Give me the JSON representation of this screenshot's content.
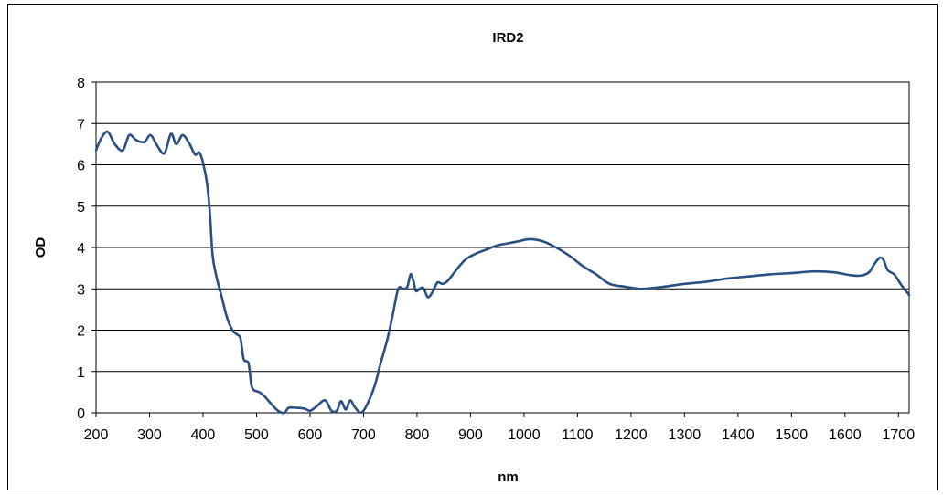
{
  "chart_data": {
    "type": "line",
    "title": "IRD2",
    "xlabel": "nm",
    "ylabel": "OD",
    "xlim": [
      200,
      1720
    ],
    "ylim": [
      0,
      8
    ],
    "xticks": [
      200,
      300,
      400,
      500,
      600,
      700,
      800,
      900,
      1000,
      1100,
      1200,
      1300,
      1400,
      1500,
      1600,
      1700
    ],
    "yticks": [
      0,
      1,
      2,
      3,
      4,
      5,
      6,
      7,
      8
    ],
    "grid": "horizontal",
    "legend": "none",
    "series": [
      {
        "color": "#2a4f82",
        "points": [
          [
            200,
            6.35
          ],
          [
            210,
            6.65
          ],
          [
            222,
            6.8
          ],
          [
            235,
            6.5
          ],
          [
            250,
            6.35
          ],
          [
            262,
            6.72
          ],
          [
            275,
            6.6
          ],
          [
            290,
            6.55
          ],
          [
            302,
            6.72
          ],
          [
            315,
            6.45
          ],
          [
            328,
            6.28
          ],
          [
            340,
            6.75
          ],
          [
            350,
            6.5
          ],
          [
            362,
            6.72
          ],
          [
            375,
            6.5
          ],
          [
            385,
            6.25
          ],
          [
            393,
            6.3
          ],
          [
            400,
            6.05
          ],
          [
            408,
            5.5
          ],
          [
            413,
            4.8
          ],
          [
            418,
            3.8
          ],
          [
            425,
            3.3
          ],
          [
            435,
            2.8
          ],
          [
            445,
            2.3
          ],
          [
            455,
            2.0
          ],
          [
            463,
            1.9
          ],
          [
            470,
            1.8
          ],
          [
            476,
            1.3
          ],
          [
            485,
            1.2
          ],
          [
            490,
            0.7
          ],
          [
            495,
            0.55
          ],
          [
            505,
            0.5
          ],
          [
            515,
            0.4
          ],
          [
            525,
            0.25
          ],
          [
            540,
            0.05
          ],
          [
            552,
            0.0
          ],
          [
            560,
            0.12
          ],
          [
            575,
            0.12
          ],
          [
            590,
            0.1
          ],
          [
            600,
            0.05
          ],
          [
            612,
            0.15
          ],
          [
            628,
            0.3
          ],
          [
            640,
            0.05
          ],
          [
            650,
            0.05
          ],
          [
            658,
            0.28
          ],
          [
            667,
            0.08
          ],
          [
            675,
            0.3
          ],
          [
            683,
            0.15
          ],
          [
            692,
            0.02
          ],
          [
            700,
            0.05
          ],
          [
            712,
            0.35
          ],
          [
            722,
            0.7
          ],
          [
            732,
            1.2
          ],
          [
            745,
            1.8
          ],
          [
            755,
            2.4
          ],
          [
            765,
            3.0
          ],
          [
            775,
            3.0
          ],
          [
            782,
            3.05
          ],
          [
            788,
            3.35
          ],
          [
            793,
            3.2
          ],
          [
            798,
            2.95
          ],
          [
            805,
            3.0
          ],
          [
            812,
            3.02
          ],
          [
            820,
            2.8
          ],
          [
            828,
            2.9
          ],
          [
            838,
            3.15
          ],
          [
            848,
            3.12
          ],
          [
            858,
            3.2
          ],
          [
            870,
            3.4
          ],
          [
            890,
            3.7
          ],
          [
            910,
            3.85
          ],
          [
            930,
            3.95
          ],
          [
            950,
            4.05
          ],
          [
            970,
            4.1
          ],
          [
            990,
            4.15
          ],
          [
            1010,
            4.2
          ],
          [
            1035,
            4.15
          ],
          [
            1060,
            4.0
          ],
          [
            1085,
            3.8
          ],
          [
            1110,
            3.55
          ],
          [
            1135,
            3.35
          ],
          [
            1160,
            3.12
          ],
          [
            1190,
            3.05
          ],
          [
            1220,
            3.0
          ],
          [
            1260,
            3.05
          ],
          [
            1300,
            3.12
          ],
          [
            1340,
            3.17
          ],
          [
            1380,
            3.25
          ],
          [
            1420,
            3.3
          ],
          [
            1460,
            3.35
          ],
          [
            1500,
            3.38
          ],
          [
            1540,
            3.42
          ],
          [
            1580,
            3.4
          ],
          [
            1610,
            3.33
          ],
          [
            1630,
            3.32
          ],
          [
            1645,
            3.4
          ],
          [
            1655,
            3.6
          ],
          [
            1665,
            3.75
          ],
          [
            1672,
            3.7
          ],
          [
            1680,
            3.45
          ],
          [
            1692,
            3.35
          ],
          [
            1705,
            3.1
          ],
          [
            1720,
            2.85
          ]
        ]
      }
    ]
  }
}
